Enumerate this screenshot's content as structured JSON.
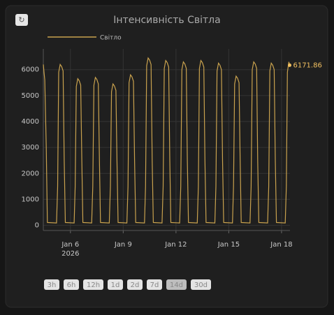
{
  "refresh_icon": "↻",
  "chart_data": {
    "type": "line",
    "title": "Інтенсивність Світла",
    "x": [
      "2026-01-04T11:00",
      "2026-01-04T12:00",
      "2026-01-04T13:00",
      "2026-01-04T15:00",
      "2026-01-04T16:30",
      "2026-01-05T05:00",
      "2026-01-05T06:30",
      "2026-01-05T08:00",
      "2026-01-05T10:00",
      "2026-01-05T12:00",
      "2026-01-05T14:00",
      "2026-01-05T15:30",
      "2026-01-05T17:00",
      "2026-01-06T05:00",
      "2026-01-06T06:30",
      "2026-01-06T08:00",
      "2026-01-06T10:00",
      "2026-01-06T12:00",
      "2026-01-06T14:00",
      "2026-01-06T15:30",
      "2026-01-06T17:00",
      "2026-01-07T05:00",
      "2026-01-07T06:30",
      "2026-01-07T08:00",
      "2026-01-07T10:00",
      "2026-01-07T12:00",
      "2026-01-07T14:00",
      "2026-01-07T15:30",
      "2026-01-07T17:00",
      "2026-01-08T05:00",
      "2026-01-08T06:30",
      "2026-01-08T08:00",
      "2026-01-08T10:00",
      "2026-01-08T12:00",
      "2026-01-08T14:00",
      "2026-01-08T15:30",
      "2026-01-08T17:00",
      "2026-01-09T05:00",
      "2026-01-09T06:30",
      "2026-01-09T08:00",
      "2026-01-09T10:00",
      "2026-01-09T12:00",
      "2026-01-09T14:00",
      "2026-01-09T15:30",
      "2026-01-09T17:00",
      "2026-01-10T05:00",
      "2026-01-10T06:30",
      "2026-01-10T08:00",
      "2026-01-10T10:00",
      "2026-01-10T12:00",
      "2026-01-10T14:00",
      "2026-01-10T15:30",
      "2026-01-10T17:00",
      "2026-01-11T05:00",
      "2026-01-11T06:30",
      "2026-01-11T08:00",
      "2026-01-11T10:00",
      "2026-01-11T12:00",
      "2026-01-11T14:00",
      "2026-01-11T15:30",
      "2026-01-11T17:00",
      "2026-01-12T05:00",
      "2026-01-12T06:30",
      "2026-01-12T08:00",
      "2026-01-12T10:00",
      "2026-01-12T12:00",
      "2026-01-12T14:00",
      "2026-01-12T15:30",
      "2026-01-12T17:00",
      "2026-01-13T05:00",
      "2026-01-13T06:30",
      "2026-01-13T08:00",
      "2026-01-13T10:00",
      "2026-01-13T12:00",
      "2026-01-13T14:00",
      "2026-01-13T15:30",
      "2026-01-13T17:00",
      "2026-01-14T05:00",
      "2026-01-14T06:30",
      "2026-01-14T08:00",
      "2026-01-14T10:00",
      "2026-01-14T12:00",
      "2026-01-14T14:00",
      "2026-01-14T15:30",
      "2026-01-14T17:00",
      "2026-01-15T05:00",
      "2026-01-15T06:30",
      "2026-01-15T08:00",
      "2026-01-15T10:00",
      "2026-01-15T12:00",
      "2026-01-15T14:00",
      "2026-01-15T15:30",
      "2026-01-15T17:00",
      "2026-01-16T05:00",
      "2026-01-16T06:30",
      "2026-01-16T08:00",
      "2026-01-16T10:00",
      "2026-01-16T12:00",
      "2026-01-16T14:00",
      "2026-01-16T15:30",
      "2026-01-16T17:00",
      "2026-01-17T05:00",
      "2026-01-17T06:30",
      "2026-01-17T08:00",
      "2026-01-17T10:00",
      "2026-01-17T12:00",
      "2026-01-17T14:00",
      "2026-01-17T15:30",
      "2026-01-17T17:00",
      "2026-01-18T05:00",
      "2026-01-18T06:30",
      "2026-01-18T08:00",
      "2026-01-18T10:00",
      "2026-01-18T11:00"
    ],
    "series": [
      {
        "name": "Світло",
        "color": "#c9a24e",
        "values": [
          6200,
          5900,
          5600,
          3000,
          110,
          90,
          1500,
          5900,
          6200,
          6120,
          5950,
          2500,
          110,
          90,
          1500,
          5350,
          5650,
          5570,
          5400,
          2500,
          110,
          90,
          1500,
          5400,
          5700,
          5620,
          5450,
          2500,
          110,
          90,
          1500,
          5150,
          5450,
          5370,
          5200,
          2500,
          110,
          90,
          1500,
          5500,
          5800,
          5720,
          5550,
          2500,
          110,
          90,
          1500,
          6150,
          6450,
          6370,
          6200,
          2500,
          110,
          90,
          1500,
          6050,
          6350,
          6270,
          6100,
          2500,
          110,
          90,
          1500,
          6000,
          6300,
          6220,
          6050,
          2500,
          110,
          90,
          1500,
          6050,
          6350,
          6270,
          6100,
          2500,
          110,
          90,
          1500,
          5950,
          6250,
          6170,
          6000,
          2500,
          110,
          90,
          1500,
          5450,
          5750,
          5670,
          5500,
          2500,
          110,
          90,
          1500,
          6000,
          6300,
          6220,
          6050,
          2500,
          110,
          90,
          1500,
          5950,
          6250,
          6170,
          6000,
          2500,
          110,
          90,
          1500,
          5900,
          6300,
          6171.86
        ]
      }
    ],
    "ylim": [
      -200,
      6800
    ],
    "yticks": [
      0,
      1000,
      2000,
      3000,
      4000,
      5000,
      6000
    ],
    "xlim": [
      "2026-01-04T11:00",
      "2026-01-18T11:30"
    ],
    "xticks": [
      {
        "value": "2026-01-06T00:00",
        "label": "Jan 6"
      },
      {
        "value": "2026-01-09T00:00",
        "label": "Jan 9"
      },
      {
        "value": "2026-01-12T00:00",
        "label": "Jan 12"
      },
      {
        "value": "2026-01-15T00:00",
        "label": "Jan 15"
      },
      {
        "value": "2026-01-18T00:00",
        "label": "Jan 18"
      }
    ],
    "year_label": "2026",
    "grid": true,
    "legend": "top-left"
  },
  "range_buttons": [
    "3h",
    "6h",
    "12h",
    "1d",
    "2d",
    "7d",
    "14d",
    "30d"
  ],
  "selected_range": "14d"
}
